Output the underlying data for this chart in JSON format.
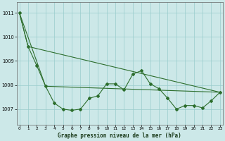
{
  "title": "Graphe pression niveau de la mer (hPa)",
  "bg_color": "#cce8e8",
  "grid_color": "#99cccc",
  "line_color": "#2d6e2d",
  "xlim": [
    -0.3,
    23.3
  ],
  "ylim": [
    1006.35,
    1011.45
  ],
  "yticks": [
    1007,
    1008,
    1009,
    1010,
    1011
  ],
  "xticks": [
    0,
    1,
    2,
    3,
    4,
    5,
    6,
    7,
    8,
    9,
    10,
    11,
    12,
    13,
    14,
    15,
    16,
    17,
    18,
    19,
    20,
    21,
    22,
    23
  ],
  "zigzag_y": [
    1011.0,
    1009.6,
    1008.8,
    1007.95,
    1007.25,
    1007.0,
    1006.95,
    1007.0,
    1007.45,
    1007.55,
    1008.05,
    1008.05,
    1007.8,
    1008.45,
    1008.6,
    1008.05,
    1007.85,
    1007.45,
    1007.0,
    1007.15,
    1007.15,
    1007.05,
    1007.35,
    1007.7
  ],
  "trend1_x": [
    0,
    1,
    23
  ],
  "trend1_y": [
    1011.0,
    1009.6,
    1007.7
  ],
  "trend2_x": [
    0,
    3,
    23
  ],
  "trend2_y": [
    1011.0,
    1007.95,
    1007.7
  ],
  "trend3_x": [
    2,
    3,
    23
  ],
  "trend3_y": [
    1008.8,
    1007.95,
    1007.7
  ]
}
